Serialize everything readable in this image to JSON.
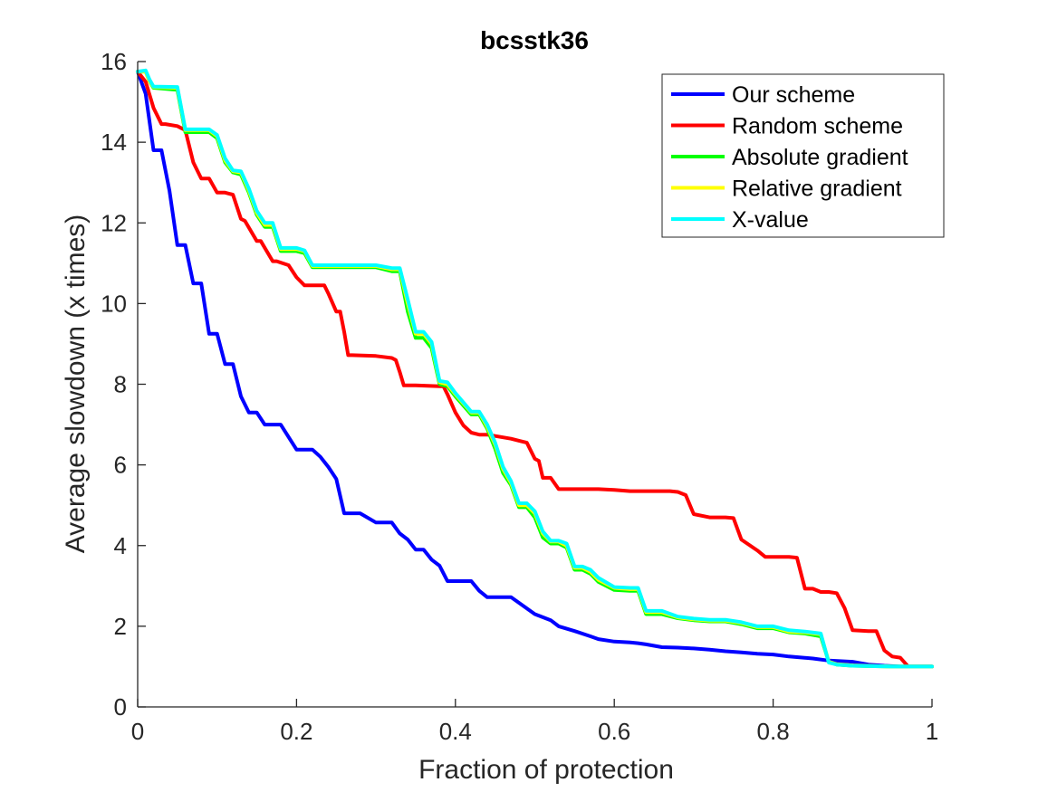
{
  "chart_data": {
    "type": "line",
    "title": "bcsstk36",
    "xlabel": "Fraction of protection",
    "ylabel": "Average slowdown (x times)",
    "xlim": [
      0,
      1
    ],
    "ylim": [
      0,
      16
    ],
    "xticks": [
      0,
      0.2,
      0.4,
      0.6,
      0.8,
      1
    ],
    "xtick_labels": [
      "0",
      "0.2",
      "0.4",
      "0.6",
      "0.8",
      "1"
    ],
    "yticks": [
      0,
      2,
      4,
      6,
      8,
      10,
      12,
      14,
      16
    ],
    "ytick_labels": [
      "0",
      "2",
      "4",
      "6",
      "8",
      "10",
      "12",
      "14",
      "16"
    ],
    "grid": false,
    "legend_position": "top-right",
    "series": [
      {
        "name": "Our scheme",
        "color": "#0000ff",
        "x": [
          0,
          0.01,
          0.02,
          0.03,
          0.04,
          0.05,
          0.06,
          0.07,
          0.08,
          0.09,
          0.1,
          0.11,
          0.12,
          0.13,
          0.14,
          0.15,
          0.16,
          0.17,
          0.18,
          0.2,
          0.22,
          0.23,
          0.24,
          0.25,
          0.26,
          0.28,
          0.3,
          0.32,
          0.33,
          0.34,
          0.35,
          0.36,
          0.37,
          0.38,
          0.39,
          0.4,
          0.42,
          0.43,
          0.44,
          0.45,
          0.47,
          0.48,
          0.5,
          0.52,
          0.53,
          0.55,
          0.57,
          0.58,
          0.6,
          0.62,
          0.63,
          0.64,
          0.66,
          0.68,
          0.7,
          0.72,
          0.74,
          0.76,
          0.78,
          0.8,
          0.82,
          0.85,
          0.87,
          0.9,
          0.92,
          0.94,
          0.96,
          0.98,
          1.0
        ],
        "y": [
          15.75,
          15.2,
          13.8,
          13.8,
          12.8,
          11.45,
          11.45,
          10.5,
          10.5,
          9.25,
          9.25,
          8.5,
          8.5,
          7.7,
          7.3,
          7.3,
          7.0,
          7.0,
          7.0,
          6.38,
          6.38,
          6.2,
          5.95,
          5.65,
          4.8,
          4.8,
          4.57,
          4.57,
          4.3,
          4.15,
          3.9,
          3.9,
          3.65,
          3.5,
          3.12,
          3.12,
          3.12,
          2.88,
          2.72,
          2.72,
          2.72,
          2.58,
          2.3,
          2.15,
          2.0,
          1.88,
          1.75,
          1.68,
          1.62,
          1.6,
          1.58,
          1.55,
          1.48,
          1.47,
          1.45,
          1.42,
          1.38,
          1.35,
          1.32,
          1.3,
          1.25,
          1.2,
          1.15,
          1.12,
          1.05,
          1.02,
          1.0,
          1.0,
          1.0
        ]
      },
      {
        "name": "Random scheme",
        "color": "#ff0000",
        "x": [
          0,
          0.01,
          0.02,
          0.03,
          0.035,
          0.05,
          0.06,
          0.07,
          0.08,
          0.09,
          0.1,
          0.11,
          0.12,
          0.13,
          0.135,
          0.15,
          0.155,
          0.17,
          0.175,
          0.19,
          0.2,
          0.21,
          0.22,
          0.235,
          0.24,
          0.25,
          0.255,
          0.26,
          0.265,
          0.27,
          0.3,
          0.32,
          0.325,
          0.33,
          0.335,
          0.35,
          0.38,
          0.385,
          0.39,
          0.4,
          0.41,
          0.42,
          0.43,
          0.44,
          0.47,
          0.48,
          0.49,
          0.5,
          0.505,
          0.51,
          0.52,
          0.53,
          0.58,
          0.6,
          0.62,
          0.64,
          0.67,
          0.68,
          0.69,
          0.7,
          0.72,
          0.74,
          0.75,
          0.76,
          0.78,
          0.79,
          0.8,
          0.81,
          0.82,
          0.83,
          0.84,
          0.85,
          0.86,
          0.87,
          0.88,
          0.89,
          0.9,
          0.92,
          0.93,
          0.94,
          0.95,
          0.96,
          0.97,
          1.0
        ],
        "y": [
          15.75,
          15.5,
          14.85,
          14.45,
          14.45,
          14.4,
          14.3,
          13.5,
          13.1,
          13.1,
          12.75,
          12.75,
          12.7,
          12.1,
          12.05,
          11.55,
          11.55,
          11.05,
          11.05,
          10.95,
          10.65,
          10.45,
          10.45,
          10.45,
          10.25,
          9.8,
          9.8,
          9.3,
          8.72,
          8.72,
          8.7,
          8.65,
          8.6,
          8.3,
          7.97,
          7.97,
          7.95,
          7.95,
          7.75,
          7.3,
          6.98,
          6.8,
          6.75,
          6.75,
          6.65,
          6.6,
          6.55,
          6.15,
          6.1,
          5.68,
          5.68,
          5.4,
          5.4,
          5.38,
          5.35,
          5.35,
          5.35,
          5.33,
          5.25,
          4.78,
          4.7,
          4.7,
          4.68,
          4.15,
          3.88,
          3.72,
          3.72,
          3.72,
          3.72,
          3.7,
          2.93,
          2.93,
          2.85,
          2.85,
          2.82,
          2.45,
          1.9,
          1.88,
          1.88,
          1.4,
          1.25,
          1.22,
          1.0,
          1.0
        ]
      },
      {
        "name": "Absolute gradient",
        "color": "#00ff00",
        "x": [
          0,
          0.01,
          0.015,
          0.02,
          0.05,
          0.06,
          0.09,
          0.1,
          0.11,
          0.12,
          0.13,
          0.14,
          0.15,
          0.16,
          0.17,
          0.18,
          0.2,
          0.21,
          0.22,
          0.25,
          0.3,
          0.32,
          0.33,
          0.34,
          0.35,
          0.36,
          0.37,
          0.38,
          0.39,
          0.4,
          0.42,
          0.43,
          0.44,
          0.45,
          0.46,
          0.47,
          0.48,
          0.49,
          0.5,
          0.51,
          0.52,
          0.53,
          0.54,
          0.55,
          0.56,
          0.57,
          0.58,
          0.6,
          0.62,
          0.63,
          0.64,
          0.66,
          0.68,
          0.7,
          0.72,
          0.74,
          0.76,
          0.78,
          0.8,
          0.82,
          0.84,
          0.86,
          0.87,
          0.88,
          0.9,
          0.95,
          1.0
        ],
        "y": [
          15.75,
          15.75,
          15.5,
          15.35,
          15.3,
          14.25,
          14.25,
          14.1,
          13.5,
          13.25,
          13.2,
          12.75,
          12.2,
          11.9,
          11.9,
          11.3,
          11.3,
          11.25,
          10.9,
          10.9,
          10.9,
          10.8,
          10.8,
          9.8,
          9.15,
          9.15,
          8.9,
          8.0,
          7.95,
          7.7,
          7.25,
          7.25,
          6.9,
          6.4,
          5.8,
          5.5,
          4.95,
          4.95,
          4.7,
          4.2,
          4.05,
          4.05,
          3.95,
          3.4,
          3.4,
          3.3,
          3.1,
          2.9,
          2.88,
          2.88,
          2.3,
          2.3,
          2.2,
          2.15,
          2.12,
          2.12,
          2.05,
          1.95,
          1.95,
          1.85,
          1.82,
          1.75,
          1.12,
          1.05,
          1.02,
          1.0,
          1.0
        ]
      },
      {
        "name": "Relative gradient",
        "color": "#ffff00",
        "x": [
          0,
          0.01,
          0.015,
          0.02,
          0.05,
          0.06,
          0.09,
          0.1,
          0.11,
          0.12,
          0.13,
          0.14,
          0.15,
          0.16,
          0.17,
          0.18,
          0.2,
          0.21,
          0.22,
          0.25,
          0.3,
          0.32,
          0.33,
          0.34,
          0.35,
          0.36,
          0.37,
          0.38,
          0.39,
          0.4,
          0.42,
          0.43,
          0.44,
          0.45,
          0.46,
          0.47,
          0.48,
          0.49,
          0.5,
          0.51,
          0.52,
          0.53,
          0.54,
          0.55,
          0.56,
          0.57,
          0.58,
          0.6,
          0.62,
          0.63,
          0.64,
          0.66,
          0.68,
          0.7,
          0.72,
          0.74,
          0.76,
          0.78,
          0.8,
          0.82,
          0.84,
          0.86,
          0.87,
          0.88,
          0.9,
          0.95,
          1.0
        ],
        "y": [
          15.75,
          15.75,
          15.5,
          15.37,
          15.35,
          14.3,
          14.3,
          14.15,
          13.55,
          13.28,
          13.25,
          12.8,
          12.25,
          11.95,
          11.95,
          11.35,
          11.35,
          11.3,
          10.93,
          10.93,
          10.93,
          10.85,
          10.85,
          10.0,
          9.25,
          9.25,
          9.0,
          8.05,
          8.0,
          7.75,
          7.3,
          7.3,
          6.95,
          6.5,
          5.9,
          5.55,
          5.0,
          5.0,
          4.8,
          4.3,
          4.1,
          4.1,
          4.0,
          3.45,
          3.45,
          3.35,
          3.15,
          2.95,
          2.92,
          2.92,
          2.35,
          2.35,
          2.22,
          2.17,
          2.14,
          2.14,
          2.08,
          1.98,
          1.98,
          1.87,
          1.85,
          1.8,
          1.12,
          1.06,
          1.03,
          1.0,
          1.0
        ]
      },
      {
        "name": "X-value",
        "color": "#00ffff",
        "x": [
          0,
          0.01,
          0.015,
          0.02,
          0.05,
          0.06,
          0.09,
          0.1,
          0.11,
          0.12,
          0.13,
          0.14,
          0.15,
          0.16,
          0.17,
          0.18,
          0.2,
          0.21,
          0.22,
          0.25,
          0.3,
          0.32,
          0.33,
          0.34,
          0.35,
          0.36,
          0.37,
          0.38,
          0.39,
          0.4,
          0.42,
          0.43,
          0.44,
          0.45,
          0.46,
          0.47,
          0.48,
          0.49,
          0.5,
          0.51,
          0.52,
          0.53,
          0.54,
          0.55,
          0.56,
          0.57,
          0.58,
          0.6,
          0.62,
          0.63,
          0.64,
          0.66,
          0.68,
          0.7,
          0.72,
          0.74,
          0.76,
          0.78,
          0.8,
          0.82,
          0.84,
          0.86,
          0.87,
          0.88,
          0.9,
          0.95,
          1.0
        ],
        "y": [
          15.75,
          15.78,
          15.55,
          15.38,
          15.37,
          14.32,
          14.32,
          14.18,
          13.6,
          13.3,
          13.28,
          12.85,
          12.3,
          12.0,
          12.0,
          11.38,
          11.38,
          11.32,
          10.95,
          10.95,
          10.95,
          10.88,
          10.88,
          10.1,
          9.3,
          9.3,
          9.05,
          8.08,
          8.05,
          7.78,
          7.32,
          7.32,
          7.0,
          6.55,
          5.95,
          5.6,
          5.05,
          5.05,
          4.85,
          4.35,
          4.12,
          4.12,
          4.05,
          3.48,
          3.48,
          3.4,
          3.2,
          2.97,
          2.95,
          2.95,
          2.38,
          2.38,
          2.24,
          2.19,
          2.16,
          2.16,
          2.1,
          2.0,
          2.0,
          1.9,
          1.87,
          1.82,
          1.1,
          1.05,
          1.02,
          1.0,
          1.0
        ]
      }
    ]
  }
}
